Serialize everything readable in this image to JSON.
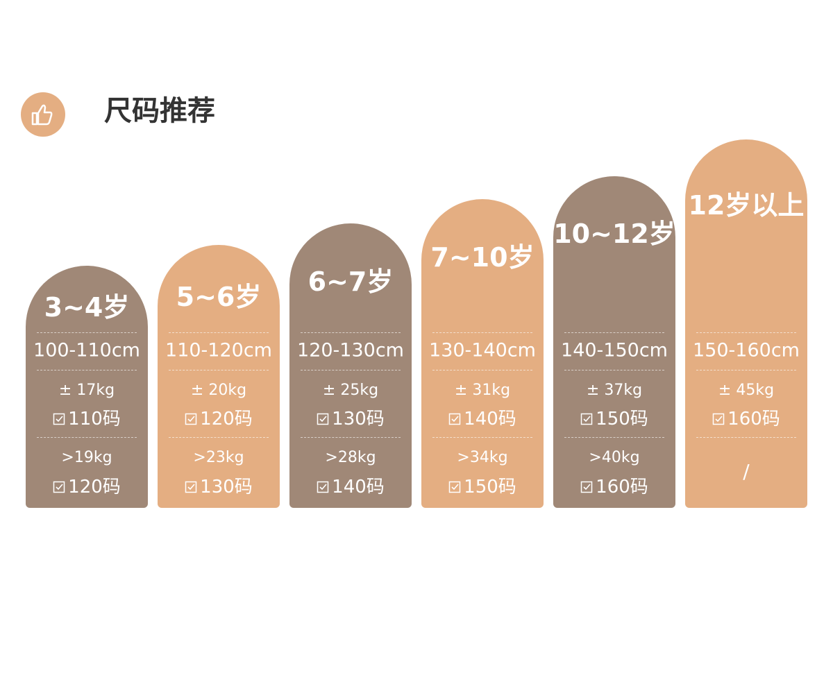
{
  "header": {
    "title": "尺码推荐"
  },
  "columns": [
    {
      "age": "3~4岁",
      "height": "100-110cm",
      "options": [
        {
          "weight": "± 17kg",
          "size": "110码"
        },
        {
          "weight": ">19kg",
          "size": "120码"
        }
      ]
    },
    {
      "age": "5~6岁",
      "height": "110-120cm",
      "options": [
        {
          "weight": "± 20kg",
          "size": "120码"
        },
        {
          "weight": ">23kg",
          "size": "130码"
        }
      ]
    },
    {
      "age": "6~7岁",
      "height": "120-130cm",
      "options": [
        {
          "weight": "± 25kg",
          "size": "130码"
        },
        {
          "weight": ">28kg",
          "size": "140码"
        }
      ]
    },
    {
      "age": "7~10岁",
      "height": "130-140cm",
      "options": [
        {
          "weight": "± 31kg",
          "size": "140码"
        },
        {
          "weight": ">34kg",
          "size": "150码"
        }
      ]
    },
    {
      "age": "10~12岁",
      "height": "140-150cm",
      "options": [
        {
          "weight": "± 37kg",
          "size": "150码"
        },
        {
          "weight": ">40kg",
          "size": "160码"
        }
      ]
    },
    {
      "age": "12岁以上",
      "height": "150-160cm",
      "options": [
        {
          "weight": "± 45kg",
          "size": "160码"
        },
        {
          "text": "/"
        }
      ]
    }
  ]
}
